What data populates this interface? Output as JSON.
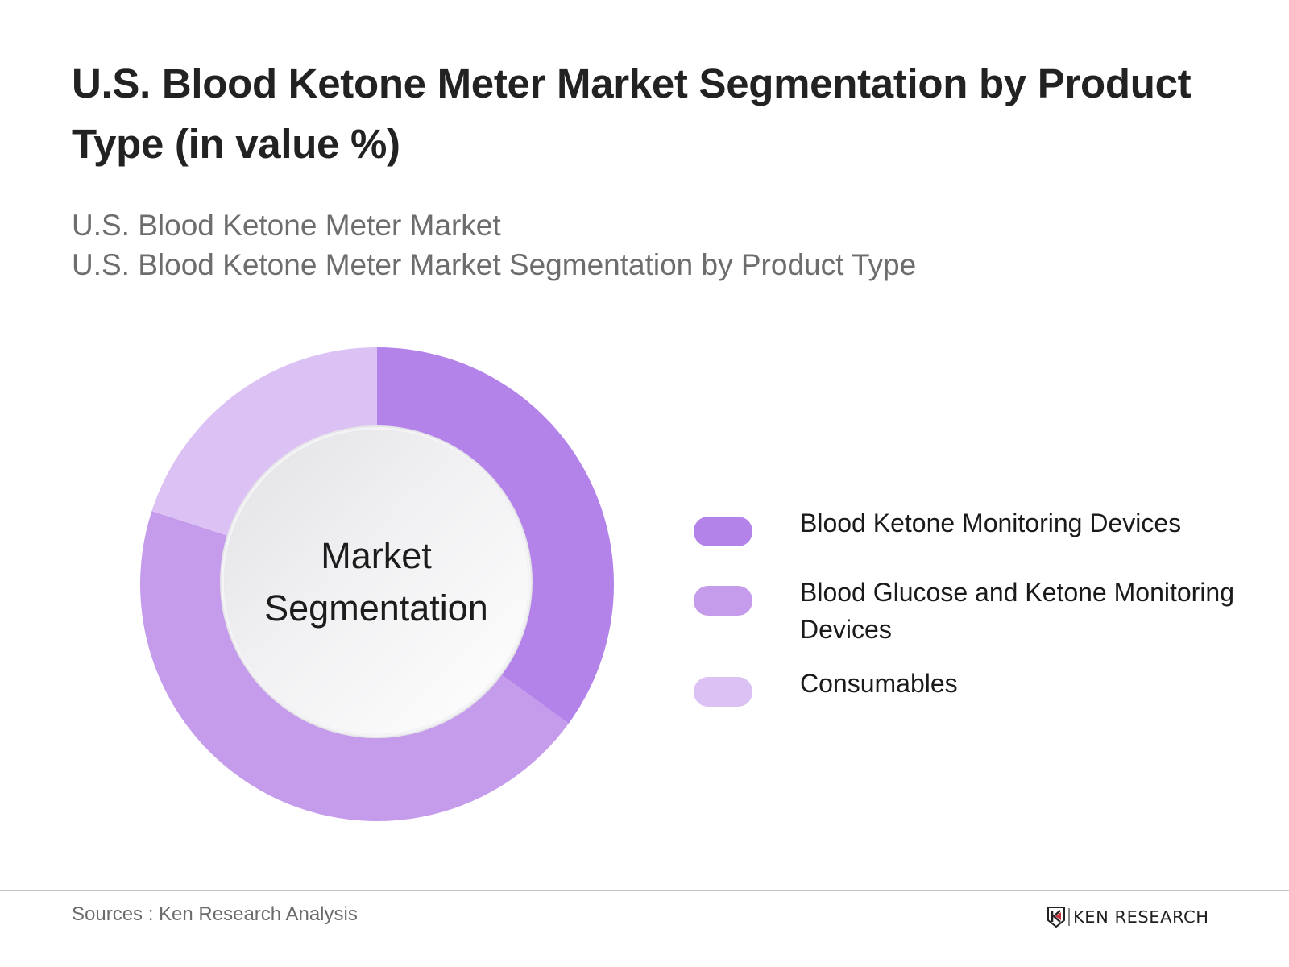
{
  "header": {
    "title": "U.S. Blood Ketone Meter Market Segmentation by Product Type (in value %)",
    "subtitle_lines": [
      "U.S. Blood Ketone Meter Market",
      "U.S. Blood Ketone Meter Market Segmentation by Product Type"
    ]
  },
  "donut": {
    "center_lines": [
      "Market",
      "Segmentation"
    ]
  },
  "legend": {
    "items": [
      {
        "label": "Blood Ketone Monitoring Devices",
        "color": "#b383ea"
      },
      {
        "label": "Blood Glucose and Ketone Monitoring Devices",
        "color": "#c59cec"
      },
      {
        "label": "Consumables",
        "color": "#dcc1f5"
      }
    ]
  },
  "footer": {
    "source": "Sources : Ken Research Analysis",
    "logo_text": "KEN RESEARCH",
    "logo_accent_color": "#c8313a"
  },
  "chart_data": {
    "type": "pie",
    "variant": "donut",
    "title": "U.S. Blood Ketone Meter Market Segmentation by Product Type (in value %)",
    "subtitle": "U.S. Blood Ketone Meter Market / U.S. Blood Ketone Meter Market Segmentation by Product Type",
    "center_label": "Market Segmentation",
    "categories": [
      "Blood Ketone Monitoring Devices",
      "Blood Glucose and Ketone Monitoring Devices",
      "Consumables"
    ],
    "values": [
      35,
      45,
      20
    ],
    "value_unit": "% (estimated from slice angles; no data labels shown)",
    "colors": [
      "#b383ea",
      "#c59cec",
      "#dcc1f5"
    ],
    "start_angle_deg": 0,
    "direction": "clockwise",
    "legend_position": "right",
    "source": "Sources : Ken Research Analysis"
  }
}
